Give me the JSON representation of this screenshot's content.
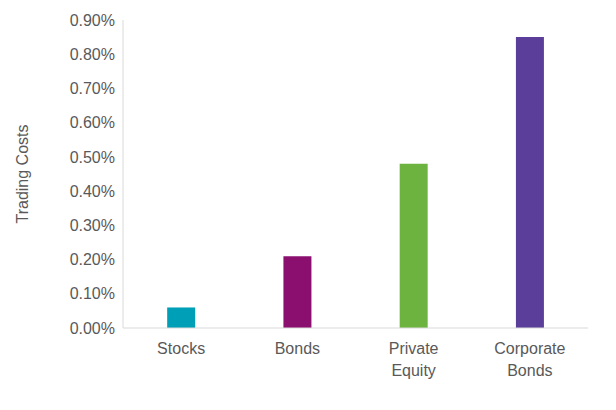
{
  "chart_data": {
    "type": "bar",
    "y_label": "Trading Costs",
    "categories": [
      "Stocks",
      "Bonds",
      "Private Equity",
      "Corporate Bonds"
    ],
    "values": [
      0.06,
      0.21,
      0.48,
      0.85
    ],
    "colors": [
      "#009fb8",
      "#8b0f6e",
      "#6db33f",
      "#5b3e9a"
    ],
    "ylim": [
      0,
      0.9
    ],
    "yticks": [
      {
        "value": 0,
        "label": "0.00%"
      },
      {
        "value": 0.1,
        "label": "0.10%"
      },
      {
        "value": 0.2,
        "label": "0.20%"
      },
      {
        "value": 0.3,
        "label": "0.30%"
      },
      {
        "value": 0.4,
        "label": "0.40%"
      },
      {
        "value": 0.5,
        "label": "0.50%"
      },
      {
        "value": 0.6,
        "label": "0.60%"
      },
      {
        "value": 0.7,
        "label": "0.70%"
      },
      {
        "value": 0.8,
        "label": "0.80%"
      },
      {
        "value": 0.9,
        "label": "0.90%"
      }
    ],
    "grid": false
  }
}
